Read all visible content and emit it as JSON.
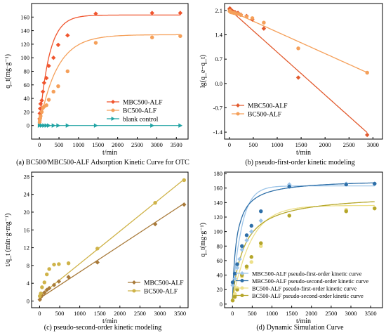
{
  "chart_data": [
    {
      "type": "scatter",
      "caption": "(a) BC500/MBC500-ALF Adsorption Kinetic Curve for OTC",
      "xlabel": "t/min",
      "ylabel": "q_t(mg·g⁻¹)",
      "xlim": [
        -200,
        3800
      ],
      "ylim": [
        -20,
        180
      ],
      "xticks": [
        0,
        500,
        1000,
        1500,
        2000,
        2500,
        3000,
        3500
      ],
      "yticks": [
        0,
        20,
        40,
        60,
        80,
        100,
        120,
        140,
        160
      ],
      "legend_position": "right",
      "series": [
        {
          "name": "MBC500-ALF",
          "color": "#f0552e",
          "marker": "diamond",
          "x": [
            5,
            10,
            20,
            30,
            60,
            90,
            120,
            180,
            240,
            360,
            480,
            720,
            1440,
            2880,
            3600
          ],
          "y": [
            10,
            18,
            25,
            32,
            37,
            50,
            63,
            70,
            88,
            100,
            119,
            133,
            165,
            166,
            166
          ],
          "fit": {
            "qe": 163,
            "k": 0.004
          }
        },
        {
          "name": "BC500-ALF",
          "color": "#f5a05a",
          "marker": "circle",
          "x": [
            5,
            10,
            20,
            30,
            60,
            90,
            120,
            180,
            240,
            360,
            480,
            720,
            1440,
            2880,
            3600
          ],
          "y": [
            5,
            8,
            11,
            14,
            20,
            26,
            28,
            30,
            38,
            50,
            58,
            80,
            122,
            130,
            132
          ],
          "fit": {
            "qe": 134,
            "k": 0.0022
          }
        },
        {
          "name": "blank control",
          "color": "#1fa3a3",
          "marker": "triangle-right",
          "x": [
            5,
            60,
            120,
            180,
            240,
            360,
            480,
            720,
            1440,
            2880,
            3600
          ],
          "y": [
            0,
            0,
            0,
            0,
            0,
            0,
            0,
            0,
            0,
            0,
            0
          ]
        }
      ]
    },
    {
      "type": "scatter",
      "caption": "(b) pseudo-first-order kinetic modeling",
      "xlabel": "t/min",
      "ylabel": "lg(q_e−q_t)",
      "xlim": [
        -100,
        3200
      ],
      "ylim": [
        -1.6,
        2.3
      ],
      "xticks": [
        0,
        500,
        1000,
        1500,
        2000,
        2500,
        3000
      ],
      "yticks": [
        -1.4,
        -0.7,
        0.0,
        0.7,
        1.4,
        2.1
      ],
      "ytick_labels": [
        "-1.4",
        "-0.7",
        "0.0",
        "0.7",
        "1.4",
        "2.1"
      ],
      "legend_position": "bottom-left",
      "series": [
        {
          "name": "MBC500-ALF",
          "color": "#e25a2e",
          "marker": "diamond",
          "x": [
            5,
            10,
            20,
            30,
            60,
            90,
            120,
            180,
            240,
            360,
            480,
            720,
            1440,
            2880
          ],
          "y": [
            2.14,
            2.16,
            2.12,
            2.1,
            2.09,
            2.06,
            2.05,
            2.03,
            1.98,
            1.94,
            1.84,
            1.58,
            0.17,
            -1.48
          ],
          "fit": {
            "a": 2.13,
            "b": -0.00123,
            "x_end": 2880
          }
        },
        {
          "name": "BC500-ALF",
          "color": "#f5a05a",
          "marker": "circle",
          "x": [
            5,
            10,
            20,
            30,
            60,
            90,
            120,
            180,
            240,
            360,
            480,
            720,
            1440,
            2880
          ],
          "y": [
            2.08,
            2.09,
            2.07,
            2.05,
            2.04,
            2.03,
            2.02,
            2.0,
            1.97,
            1.92,
            1.88,
            1.75,
            1.01,
            0.31
          ],
          "fit": {
            "a": 2.1,
            "b": -0.00062,
            "x_end": 2880
          }
        }
      ]
    },
    {
      "type": "scatter",
      "caption": "(c) pseudo-second-order kinetic modeling",
      "xlabel": "t/min",
      "ylabel": "t/q_t (min·g·mg⁻¹)",
      "xlim": [
        -200,
        3700
      ],
      "ylim": [
        -1.5,
        29
      ],
      "xticks": [
        0,
        500,
        1000,
        1500,
        2000,
        2500,
        3000,
        3500
      ],
      "yticks": [
        0,
        4,
        8,
        12,
        16,
        20,
        24,
        28
      ],
      "legend_position": "bottom-right",
      "series": [
        {
          "name": "MBC500-ALF",
          "color": "#a87a3a",
          "marker": "diamond",
          "x": [
            5,
            30,
            60,
            120,
            180,
            240,
            360,
            480,
            720,
            1440,
            2880,
            3600
          ],
          "y": [
            0.3,
            0.9,
            1.3,
            1.9,
            2.5,
            2.9,
            3.6,
            4.4,
            5.4,
            8.7,
            17.3,
            21.7
          ],
          "fit": {
            "a": 0.6,
            "b": 0.00593
          }
        },
        {
          "name": "BC500-ALF",
          "color": "#cfb349",
          "marker": "circle",
          "x": [
            5,
            30,
            60,
            120,
            180,
            240,
            360,
            480,
            720,
            1440,
            2880,
            3600
          ],
          "y": [
            1.1,
            1.7,
            3.1,
            4.2,
            6.0,
            7.2,
            8.2,
            8.3,
            8.5,
            11.8,
            22.1,
            27.2
          ],
          "fit": {
            "a": 1.1,
            "b": 0.0073
          }
        }
      ]
    },
    {
      "type": "line",
      "caption": "(d) Dynamic Simulation Curve",
      "xlabel": "t/min",
      "ylabel": "q_t(mg·g⁻¹)",
      "xlim": [
        -200,
        3800
      ],
      "ylim": [
        -5,
        182
      ],
      "xticks": [
        0,
        500,
        1000,
        1500,
        2000,
        2500,
        3000,
        3500
      ],
      "yticks": [
        0,
        20,
        40,
        60,
        80,
        100,
        120,
        140,
        160,
        180
      ],
      "legend_position": "bottom-right",
      "series": [
        {
          "name": "MBC500-ALF pseudo-first-order kinetic curve",
          "color": "#9cc4e8",
          "marker": "diamond",
          "model": "pfo",
          "params": {
            "qe": 163,
            "k": 0.0045,
            "q0": 8
          },
          "x": [
            5,
            60,
            120,
            180,
            240,
            360,
            480,
            720,
            1440,
            2880,
            3600
          ],
          "y": [
            26,
            35,
            50,
            62,
            75,
            88,
            100,
            115,
            165,
            166,
            166
          ]
        },
        {
          "name": "MBC500-ALF pseudo-second-order kinetic curve",
          "color": "#2e6fa8",
          "marker": "circle",
          "model": "pso",
          "params": {
            "qe": 172,
            "k2": 5.6e-05,
            "q0": 5
          },
          "x": [
            5,
            60,
            120,
            240,
            360,
            480,
            720,
            1440,
            2880,
            3600
          ],
          "y": [
            30,
            42,
            55,
            80,
            95,
            108,
            128,
            162,
            165,
            166
          ]
        },
        {
          "name": "BC500-ALF pseudo-first-order kinetic curve",
          "color": "#ede08a",
          "marker": "circle",
          "model": "pfo",
          "params": {
            "qe": 136,
            "k": 0.0022,
            "q0": 5
          },
          "x": [
            5,
            60,
            120,
            240,
            360,
            480,
            720,
            1440,
            2880,
            3600
          ],
          "y": [
            5,
            14,
            22,
            38,
            50,
            58,
            80,
            122,
            130,
            132
          ]
        },
        {
          "name": "BC500-ALF pseudo-second-order kinetic curve",
          "color": "#b5a62a",
          "marker": "circle",
          "model": "pso",
          "params": {
            "qe": 152,
            "k2": 2.4e-05,
            "q0": 5
          },
          "x": [
            5,
            60,
            120,
            240,
            360,
            480,
            720,
            1440,
            2880,
            3600
          ],
          "y": [
            5,
            10,
            20,
            40,
            52,
            65,
            84,
            122,
            128,
            132
          ]
        }
      ]
    }
  ]
}
